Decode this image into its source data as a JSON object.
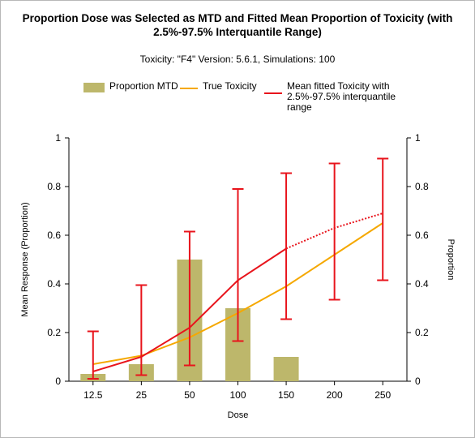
{
  "chart_data": {
    "type": "bar",
    "title": "Proportion Dose was Selected as MTD and Fitted Mean Proportion of Toxicity (with 2.5%-97.5% Interquantile Range)",
    "subtitle": "Toxicity: \"F4\" Version: 5.6.1, Simulations: 100",
    "xlabel": "Dose",
    "ylabel_left": "Mean Response (Proportion)",
    "ylabel_right": "Proportion",
    "categories": [
      "12.5",
      "25",
      "50",
      "100",
      "150",
      "200",
      "250"
    ],
    "ylim": [
      0,
      1
    ],
    "yticks": [
      "0",
      "0.2",
      "0.4",
      "0.6",
      "0.8",
      "1"
    ],
    "legend_position": "top",
    "series": [
      {
        "name": "Proportion MTD",
        "kind": "bar",
        "color": "#bdb76b",
        "values": [
          0.03,
          0.07,
          0.5,
          0.3,
          0.1,
          0,
          0
        ]
      },
      {
        "name": "True Toxicity",
        "kind": "line",
        "color": "#f5a800",
        "values": [
          0.07,
          0.105,
          0.18,
          0.28,
          0.39,
          0.52,
          0.65
        ]
      },
      {
        "name": "Mean fitted Toxicity with 2.5%-97.5% interquantile range",
        "kind": "line-errorbar",
        "color": "#e8141c",
        "values": [
          0.04,
          0.1,
          0.22,
          0.415,
          0.545,
          0.63,
          0.69
        ],
        "lower": [
          0.01,
          0.025,
          0.065,
          0.165,
          0.255,
          0.335,
          0.415
        ],
        "upper": [
          0.205,
          0.395,
          0.615,
          0.79,
          0.855,
          0.895,
          0.915
        ],
        "dotted_from_index": 4
      }
    ]
  }
}
